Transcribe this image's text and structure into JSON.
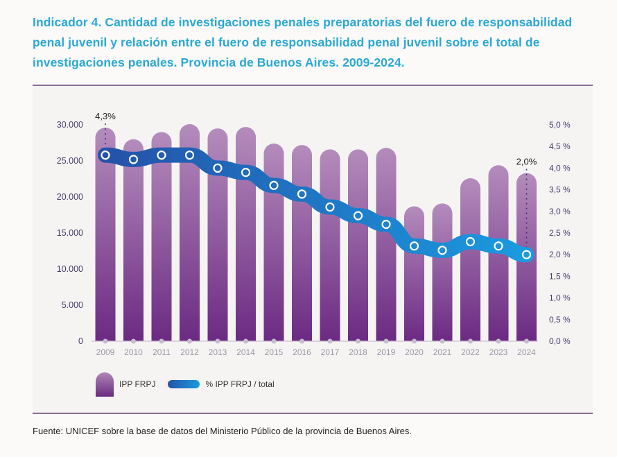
{
  "title": "Indicador 4. Cantidad de investigaciones penales preparatorias del fuero de responsabilidad penal juvenil y relación entre el fuero de responsabilidad penal juvenil sobre el total de investigaciones penales. Provincia de Buenos Aires. 2009-2024.",
  "source": "Fuente: UNICEF sobre la base de datos del Ministerio Público de la provincia de Buenos Aires.",
  "legend": {
    "bars": "IPP FRPJ",
    "line": "% IPP FRPJ / total"
  },
  "colors": {
    "title": "#2aa8d6",
    "bar_top": "#b48cbc",
    "bar_bottom": "#6b2a82",
    "line_start": "#2452a8",
    "line_end": "#1a9be0",
    "axis_text": "#4a3d6a"
  },
  "chart_data": {
    "type": "bar",
    "title": "Indicador 4. Cantidad de investigaciones penales preparatorias del fuero de responsabilidad penal juvenil y relación entre el fuero de responsabilidad penal juvenil sobre el total de investigaciones penales. Provincia de Buenos Aires. 2009-2024.",
    "categories": [
      "2009",
      "2010",
      "2011",
      "2012",
      "2013",
      "2014",
      "2015",
      "2016",
      "2017",
      "2018",
      "2019",
      "2020",
      "2021",
      "2022",
      "2023",
      "2024"
    ],
    "series": [
      {
        "name": "IPP FRPJ",
        "type": "bar",
        "axis": "left",
        "values": [
          29600,
          28000,
          29000,
          30100,
          29500,
          29700,
          27400,
          27200,
          26600,
          26600,
          26800,
          18700,
          19100,
          22600,
          24400,
          23300
        ]
      },
      {
        "name": "% IPP FRPJ / total",
        "type": "line",
        "axis": "right",
        "values": [
          4.3,
          4.2,
          4.3,
          4.3,
          4.0,
          3.9,
          3.6,
          3.4,
          3.1,
          2.9,
          2.7,
          2.2,
          2.1,
          2.3,
          2.2,
          2.0
        ]
      }
    ],
    "annotations": [
      {
        "category": "2009",
        "text": "4,3%"
      },
      {
        "category": "2024",
        "text": "2,0%"
      }
    ],
    "y_left": {
      "ylim": [
        0,
        30000
      ],
      "ticks": [
        0,
        5000,
        10000,
        15000,
        20000,
        25000,
        30000
      ],
      "tick_labels": [
        "0",
        "5.000",
        "10.000",
        "15.000",
        "20.000",
        "25.000",
        "30.000"
      ]
    },
    "y_right": {
      "ylim": [
        0,
        5
      ],
      "ticks": [
        0,
        0.5,
        1,
        1.5,
        2,
        2.5,
        3,
        3.5,
        4,
        4.5,
        5
      ],
      "tick_labels": [
        "0,0 %",
        "0,5 %",
        "1,0 %",
        "1,5 %",
        "2,0 %",
        "2,5 %",
        "3,0 %",
        "3,5 %",
        "4,0 %",
        "4,5 %",
        "5,0 %"
      ]
    },
    "xlabel": "",
    "ylabel": "",
    "grid": false,
    "legend_position": "bottom-left"
  }
}
